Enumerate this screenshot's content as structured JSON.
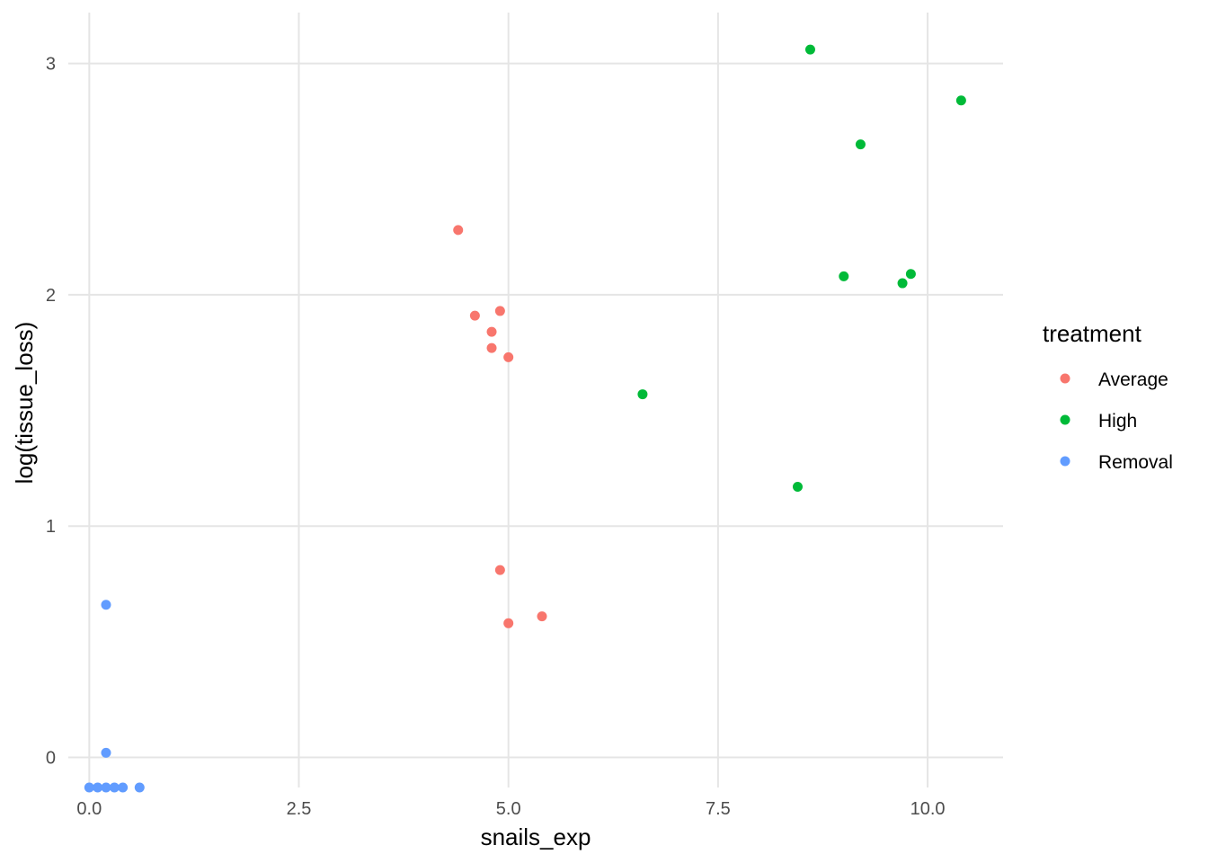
{
  "chart_data": {
    "type": "scatter",
    "title": "",
    "xlabel": "snails_exp",
    "ylabel": "log(tissue_loss)",
    "xlim": [
      -0.25,
      10.9
    ],
    "ylim": [
      -0.13,
      3.22
    ],
    "x_ticks": [
      0.0,
      2.5,
      5.0,
      7.5,
      10.0
    ],
    "x_tick_labels": [
      "0.0",
      "2.5",
      "5.0",
      "7.5",
      "10.0"
    ],
    "y_ticks": [
      0,
      1,
      2,
      3
    ],
    "y_tick_labels": [
      "0",
      "1",
      "2",
      "3"
    ],
    "grid": true,
    "legend": {
      "title": "treatment",
      "placement": "right"
    },
    "series": [
      {
        "name": "Average",
        "color": "#F8766D",
        "points": [
          {
            "x": 4.4,
            "y": 2.28
          },
          {
            "x": 4.6,
            "y": 1.91
          },
          {
            "x": 4.9,
            "y": 1.93
          },
          {
            "x": 4.8,
            "y": 1.84
          },
          {
            "x": 4.8,
            "y": 1.77
          },
          {
            "x": 5.0,
            "y": 1.73
          },
          {
            "x": 4.9,
            "y": 0.81
          },
          {
            "x": 5.0,
            "y": 0.58
          },
          {
            "x": 5.4,
            "y": 0.61
          }
        ]
      },
      {
        "name": "High",
        "color": "#00BA38",
        "points": [
          {
            "x": 8.6,
            "y": 3.06
          },
          {
            "x": 10.4,
            "y": 2.84
          },
          {
            "x": 9.2,
            "y": 2.65
          },
          {
            "x": 9.0,
            "y": 2.08
          },
          {
            "x": 9.8,
            "y": 2.09
          },
          {
            "x": 9.7,
            "y": 2.05
          },
          {
            "x": 6.6,
            "y": 1.57
          },
          {
            "x": 8.45,
            "y": 1.17
          }
        ]
      },
      {
        "name": "Removal",
        "color": "#619CFF",
        "points": [
          {
            "x": 0.2,
            "y": 0.66
          },
          {
            "x": 0.2,
            "y": 0.02
          },
          {
            "x": 0.0,
            "y": -0.13
          },
          {
            "x": 0.1,
            "y": -0.13
          },
          {
            "x": 0.2,
            "y": -0.13
          },
          {
            "x": 0.3,
            "y": -0.13
          },
          {
            "x": 0.4,
            "y": -0.13
          },
          {
            "x": 0.6,
            "y": -0.13
          }
        ]
      }
    ]
  }
}
